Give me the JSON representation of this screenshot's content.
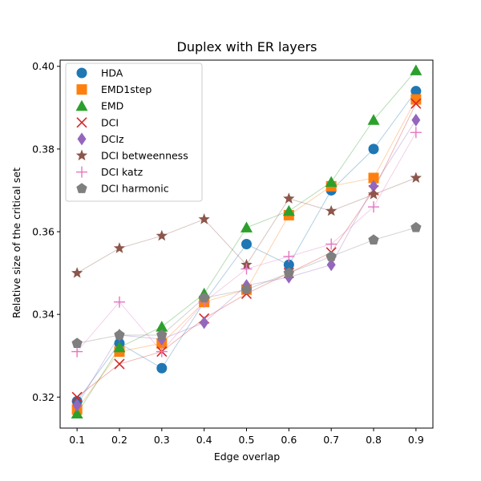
{
  "chart_data": {
    "type": "line",
    "title": "Duplex with ER layers",
    "xlabel": "Edge overlap",
    "ylabel": "Relative size of the critical set",
    "x": [
      0.1,
      0.2,
      0.3,
      0.4,
      0.5,
      0.6,
      0.7,
      0.8,
      0.9
    ],
    "x_tick_labels": [
      "0.1",
      "0.2",
      "0.3",
      "0.4",
      "0.5",
      "0.6",
      "0.7",
      "0.8",
      "0.9"
    ],
    "y_ticks": [
      0.32,
      0.34,
      0.36,
      0.38,
      0.4
    ],
    "y_tick_labels": [
      "0.32",
      "0.34",
      "0.36",
      "0.38",
      "0.40"
    ],
    "xlim": [
      0.06,
      0.94
    ],
    "ylim": [
      0.3125,
      0.4015
    ],
    "grid": false,
    "legend_position": "upper-left",
    "series": [
      {
        "name": "HDA",
        "marker": "circle",
        "color": "#1f77b4",
        "values": [
          0.319,
          0.333,
          0.327,
          0.343,
          0.357,
          0.352,
          0.37,
          0.38,
          0.394
        ]
      },
      {
        "name": "EMD1step",
        "marker": "square",
        "color": "#ff7f0e",
        "values": [
          0.317,
          0.331,
          0.333,
          0.343,
          0.346,
          0.364,
          0.371,
          0.373,
          0.392
        ]
      },
      {
        "name": "EMD",
        "marker": "triangle",
        "color": "#2ca02c",
        "values": [
          0.316,
          0.332,
          0.337,
          0.345,
          0.361,
          0.365,
          0.372,
          0.387,
          0.399
        ]
      },
      {
        "name": "DCI",
        "marker": "x",
        "color": "#d62728",
        "values": [
          0.32,
          0.328,
          0.331,
          0.339,
          0.345,
          0.35,
          0.355,
          0.37,
          0.391
        ]
      },
      {
        "name": "DCIz",
        "marker": "diamond",
        "color": "#9467bd",
        "values": [
          0.318,
          0.335,
          0.334,
          0.338,
          0.347,
          0.349,
          0.352,
          0.371,
          0.387
        ]
      },
      {
        "name": "DCI betweenness",
        "marker": "star",
        "color": "#8c564b",
        "values": [
          0.35,
          0.356,
          0.359,
          0.363,
          0.352,
          0.368,
          0.365,
          0.369,
          0.373
        ]
      },
      {
        "name": "DCI katz",
        "marker": "plus",
        "color": "#e377c2",
        "values": [
          0.331,
          0.343,
          0.331,
          0.343,
          0.351,
          0.354,
          0.357,
          0.366,
          0.384
        ]
      },
      {
        "name": "DCI harmonic",
        "marker": "pentagon",
        "color": "#7f7f7f",
        "values": [
          0.333,
          0.335,
          0.335,
          0.344,
          0.346,
          0.35,
          0.354,
          0.358,
          0.361
        ]
      }
    ]
  }
}
